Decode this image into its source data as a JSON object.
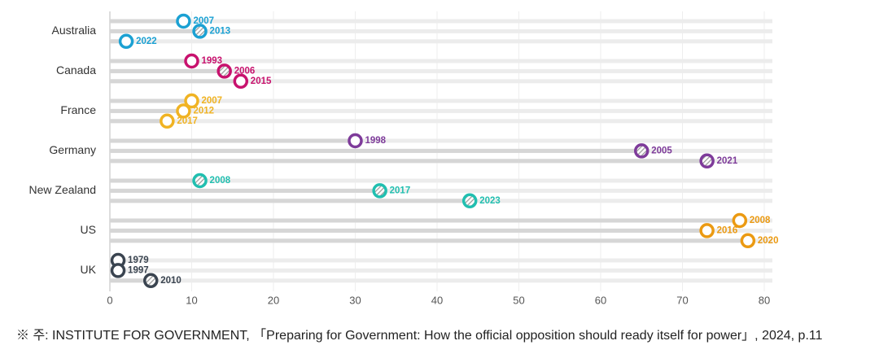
{
  "chart_data": {
    "type": "dot",
    "series": [
      {
        "name": "Australia",
        "color": "#1ba1d3",
        "labels": [
          "2007",
          "2013",
          "2022"
        ],
        "values": [
          9,
          11,
          2
        ],
        "hatched": [
          false,
          true,
          false
        ]
      },
      {
        "name": "Canada",
        "color": "#c8126e",
        "labels": [
          "1993",
          "2006",
          "2015"
        ],
        "values": [
          10,
          14,
          16
        ],
        "hatched": [
          false,
          true,
          false
        ]
      },
      {
        "name": "France",
        "color": "#f0b323",
        "labels": [
          "2007",
          "2012",
          "2017"
        ],
        "values": [
          10,
          9,
          7
        ],
        "hatched": [
          false,
          false,
          false
        ]
      },
      {
        "name": "Germany",
        "color": "#7e3b9a",
        "labels": [
          "1998",
          "2005",
          "2021"
        ],
        "values": [
          30,
          65,
          73
        ],
        "hatched": [
          false,
          true,
          true
        ]
      },
      {
        "name": "New Zealand",
        "color": "#21bfb0",
        "labels": [
          "2008",
          "2017",
          "2023"
        ],
        "values": [
          11,
          33,
          44
        ],
        "hatched": [
          true,
          true,
          true
        ]
      },
      {
        "name": "US",
        "color": "#eb9a12",
        "labels": [
          "2008",
          "2016",
          "2020"
        ],
        "values": [
          77,
          73,
          78
        ],
        "hatched": [
          false,
          false,
          false
        ]
      },
      {
        "name": "UK",
        "color": "#3a4450",
        "labels": [
          "1979",
          "1997",
          "2010"
        ],
        "values": [
          1,
          1,
          5
        ],
        "hatched": [
          false,
          false,
          true
        ]
      }
    ],
    "xlim": [
      0,
      80
    ],
    "xticks": [
      0,
      10,
      20,
      30,
      40,
      50,
      60,
      70,
      80
    ],
    "grid": true,
    "source": "※ 주:  INSTITUTE FOR GOVERNMENT, 「Preparing for Government: How the official opposition should ready itself for power」, 2024, p.11"
  }
}
